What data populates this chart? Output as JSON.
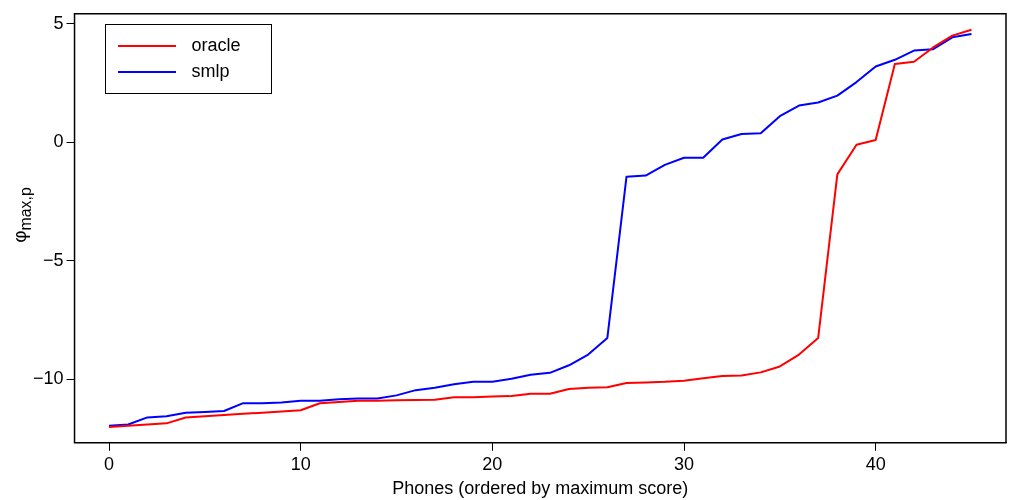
{
  "chart_data": {
    "type": "line",
    "xlabel": "Phones (ordered by maximum score)",
    "ylabel": "φ$_{max,p}$",
    "x": [
      0,
      1,
      2,
      3,
      4,
      5,
      6,
      7,
      8,
      9,
      10,
      11,
      12,
      13,
      14,
      15,
      16,
      17,
      18,
      19,
      20,
      21,
      22,
      23,
      24,
      25,
      26,
      27,
      28,
      29,
      30,
      31,
      32,
      33,
      34,
      35,
      36,
      37,
      38,
      39,
      40,
      41,
      42,
      43,
      44,
      45
    ],
    "series": [
      {
        "name": "oracle",
        "color": "#ff0000",
        "values": [
          -12.0,
          -11.95,
          -11.9,
          -11.85,
          -11.6,
          -11.55,
          -11.5,
          -11.45,
          -11.4,
          -11.35,
          -11.3,
          -11.0,
          -10.95,
          -10.9,
          -10.9,
          -10.88,
          -10.87,
          -10.85,
          -10.75,
          -10.75,
          -10.72,
          -10.7,
          -10.6,
          -10.6,
          -10.4,
          -10.35,
          -10.33,
          -10.15,
          -10.13,
          -10.1,
          -10.05,
          -9.95,
          -9.85,
          -9.83,
          -9.7,
          -9.45,
          -8.95,
          -8.25,
          -1.35,
          -0.1,
          0.1,
          3.3,
          3.4,
          4.0,
          4.5,
          4.75
        ]
      },
      {
        "name": "smlp",
        "color": "#0000ff",
        "values": [
          -11.95,
          -11.9,
          -11.6,
          -11.55,
          -11.4,
          -11.37,
          -11.33,
          -11.0,
          -11.0,
          -10.97,
          -10.9,
          -10.9,
          -10.83,
          -10.8,
          -10.8,
          -10.67,
          -10.45,
          -10.35,
          -10.2,
          -10.1,
          -10.1,
          -9.97,
          -9.8,
          -9.72,
          -9.4,
          -8.95,
          -8.25,
          -1.45,
          -1.4,
          -0.95,
          -0.65,
          -0.65,
          0.12,
          0.35,
          0.38,
          1.1,
          1.55,
          1.68,
          1.97,
          2.54,
          3.2,
          3.48,
          3.87,
          3.93,
          4.43,
          4.57
        ]
      }
    ],
    "xlim": [
      -1.8,
      46.8
    ],
    "xticks": [
      0,
      10,
      20,
      30,
      40
    ],
    "ylim": [
      -12.67,
      5.42
    ],
    "yticks": [
      -10,
      -5,
      0,
      5
    ],
    "legend": "top left",
    "marker": "none",
    "line_style": "solid",
    "grid": false
  }
}
